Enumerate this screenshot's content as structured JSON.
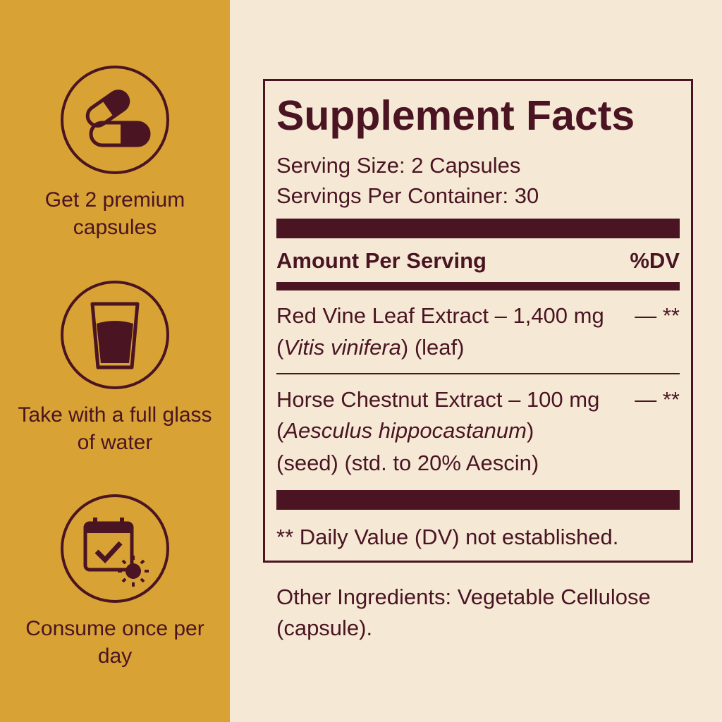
{
  "steps": [
    "Get 2 premium capsules",
    "Take with a full glass of water",
    "Consume once per day"
  ],
  "facts": {
    "title": "Supplement Facts",
    "serving_size": "Serving Size: 2 Capsules",
    "servings_per_container": "Servings Per Container: 30",
    "header_amount": "Amount Per Serving",
    "header_dv": "%DV",
    "ingredients": [
      {
        "name": "Red Vine Leaf Extract – 1,400 mg",
        "dv": "— **",
        "note": [
          "(",
          "Vitis vinifera",
          ") (leaf)"
        ]
      },
      {
        "name": "Horse Chestnut Extract – 100 mg",
        "dv": "— **",
        "note": [
          "(",
          "Aesculus hippocastanum",
          ")"
        ],
        "note_line2": "(seed) (std. to 20% Aescin)"
      }
    ],
    "footnote": "** Daily Value (DV) not established."
  },
  "other_ingredients": "Other Ingredients: Vegetable Cellulose (capsule)."
}
